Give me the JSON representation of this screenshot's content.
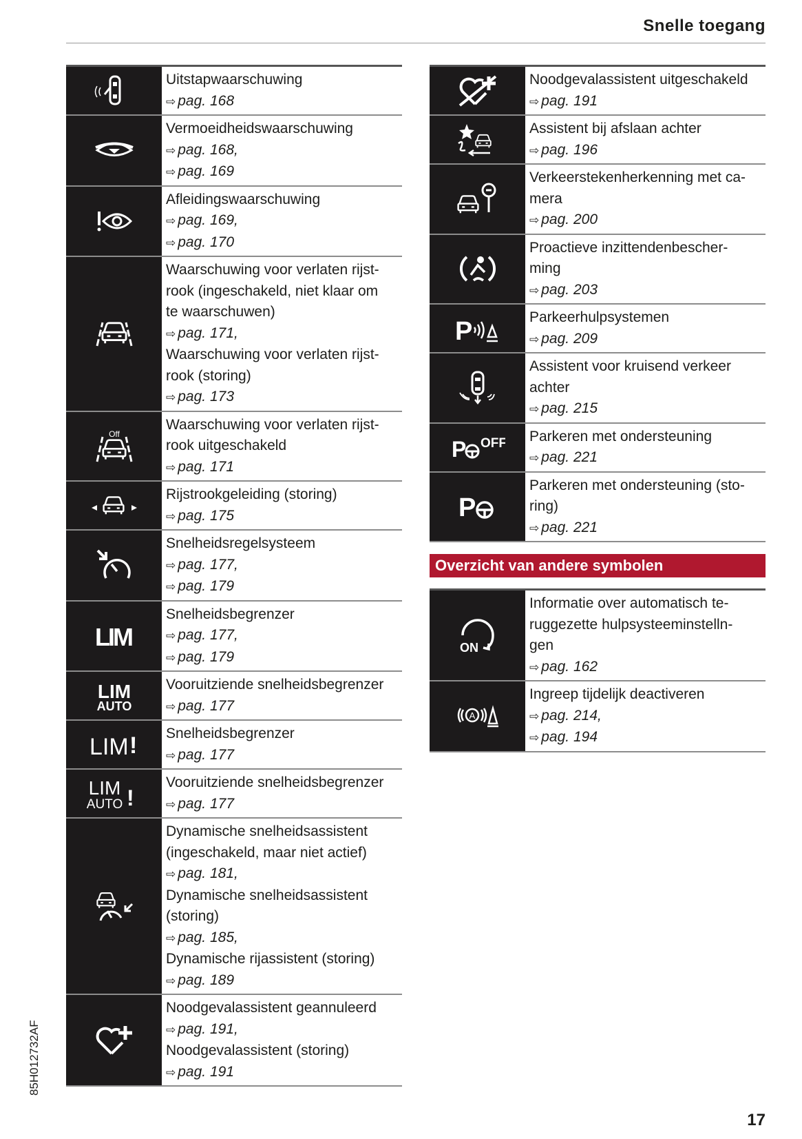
{
  "header": {
    "title": "Snelle toegang"
  },
  "left_table": [
    {
      "icon": "exit-warning-icon",
      "lines": [
        {
          "t": "Uitstapwaarschuwing"
        },
        {
          "p": "pag. 168"
        }
      ]
    },
    {
      "icon": "fatigue-eye-icon",
      "lines": [
        {
          "t": "Vermoeidheidswaarschuwing"
        },
        {
          "p": "pag. 168,"
        },
        {
          "p": "pag. 169"
        }
      ]
    },
    {
      "icon": "distraction-eye-icon",
      "lines": [
        {
          "t": "Afleidingswaarschuwing"
        },
        {
          "p": "pag. 169,"
        },
        {
          "p": "pag. 170"
        }
      ]
    },
    {
      "icon": "lane-departure-icon",
      "lines": [
        {
          "t": "Waarschuwing voor verlaten rijst-"
        },
        {
          "t": "rook (ingeschakeld, niet klaar om"
        },
        {
          "t": "te waarschuwen)"
        },
        {
          "p": "pag. 171,"
        },
        {
          "t": "Waarschuwing voor verlaten rijst-"
        },
        {
          "t": "rook (storing)"
        },
        {
          "p": "pag. 173"
        }
      ]
    },
    {
      "icon": "lane-departure-off-icon",
      "lines": [
        {
          "t": "Waarschuwing voor verlaten rijst-"
        },
        {
          "t": "rook uitgeschakeld"
        },
        {
          "p": "pag. 171"
        }
      ]
    },
    {
      "icon": "lane-guidance-icon",
      "lines": [
        {
          "t": "Rijstrookgeleiding (storing)"
        },
        {
          "p": "pag. 175"
        }
      ]
    },
    {
      "icon": "cruise-control-icon",
      "lines": [
        {
          "t": "Snelheidsregelsysteem"
        },
        {
          "p": "pag. 177,"
        },
        {
          "p": "pag. 179"
        }
      ]
    },
    {
      "icon": "lim-icon",
      "lines": [
        {
          "t": "Snelheidsbegrenzer"
        },
        {
          "p": "pag. 177,"
        },
        {
          "p": "pag. 179"
        }
      ]
    },
    {
      "icon": "lim-auto-icon",
      "lines": [
        {
          "t": "Vooruitziende snelheidsbegrenzer"
        },
        {
          "p": "pag. 177"
        }
      ]
    },
    {
      "icon": "lim-warning-icon",
      "lines": [
        {
          "t": "Snelheidsbegrenzer"
        },
        {
          "p": "pag. 177"
        }
      ]
    },
    {
      "icon": "lim-auto-warning-icon",
      "lines": [
        {
          "t": "Vooruitziende snelheidsbegrenzer"
        },
        {
          "p": "pag. 177"
        }
      ]
    },
    {
      "icon": "dynamic-speed-assist-icon",
      "lines": [
        {
          "t": "Dynamische snelheidsassistent"
        },
        {
          "t": "(ingeschakeld, maar niet actief)"
        },
        {
          "p": "pag. 181,"
        },
        {
          "t": "Dynamische snelheidsassistent"
        },
        {
          "t": "(storing)"
        },
        {
          "p": "pag. 185,"
        },
        {
          "t": "Dynamische rijassistent (storing)"
        },
        {
          "p": "pag. 189"
        }
      ]
    },
    {
      "icon": "heart-plus-icon",
      "lines": [
        {
          "t": "Noodgevalassistent geannuleerd"
        },
        {
          "p": "pag. 191,"
        },
        {
          "t": "Noodgevalassistent (storing)"
        },
        {
          "p": "pag. 191"
        }
      ]
    }
  ],
  "right_table": [
    {
      "icon": "heart-plus-crossed-icon",
      "lines": [
        {
          "t": "Noodgevalassistent uitgeschakeld"
        },
        {
          "p": "pag. 191"
        }
      ]
    },
    {
      "icon": "turn-assist-icon",
      "lines": [
        {
          "t": "Assistent bij afslaan achter"
        },
        {
          "p": "pag. 196"
        }
      ]
    },
    {
      "icon": "traffic-sign-camera-icon",
      "lines": [
        {
          "t": "Verkeerstekenherkenning met ca-"
        },
        {
          "t": "mera"
        },
        {
          "p": "pag. 200"
        }
      ]
    },
    {
      "icon": "occupant-protection-icon",
      "lines": [
        {
          "t": "Proactieve inzittendenbescher-"
        },
        {
          "t": "ming"
        },
        {
          "p": "pag. 203"
        }
      ]
    },
    {
      "icon": "parking-aid-icon",
      "lines": [
        {
          "t": "Parkeerhulpsystemen"
        },
        {
          "p": "pag. 209"
        }
      ]
    },
    {
      "icon": "rear-cross-traffic-icon",
      "lines": [
        {
          "t": "Assistent voor kruisend verkeer"
        },
        {
          "t": "achter"
        },
        {
          "p": "pag. 215"
        }
      ]
    },
    {
      "icon": "park-assist-off-icon",
      "lines": [
        {
          "t": "Parkeren met ondersteuning"
        },
        {
          "p": "pag. 221"
        }
      ]
    },
    {
      "icon": "park-assist-icon",
      "lines": [
        {
          "t": "Parkeren met ondersteuning (sto-"
        },
        {
          "t": "ring)"
        },
        {
          "p": "pag. 221"
        }
      ]
    }
  ],
  "section": {
    "title": "Overzicht van andere symbolen"
  },
  "other_table": [
    {
      "icon": "auto-reset-on-icon",
      "lines": [
        {
          "t": "Informatie over automatisch te-"
        },
        {
          "t": "ruggezette hulpsysteeminstelln-"
        },
        {
          "t": "gen"
        },
        {
          "p": "pag. 162"
        }
      ]
    },
    {
      "icon": "intervention-deactivate-icon",
      "lines": [
        {
          "t": "Ingreep tijdelijk deactiveren"
        },
        {
          "p": "pag. 214,"
        },
        {
          "p": "pag. 194"
        }
      ]
    }
  ],
  "ref_arrow": "⇨",
  "footer": {
    "page_number": "17",
    "side_code": "85H012732AF"
  },
  "colors": {
    "icon_background": "#1c1a1b",
    "section_bar": "#b0182f"
  }
}
